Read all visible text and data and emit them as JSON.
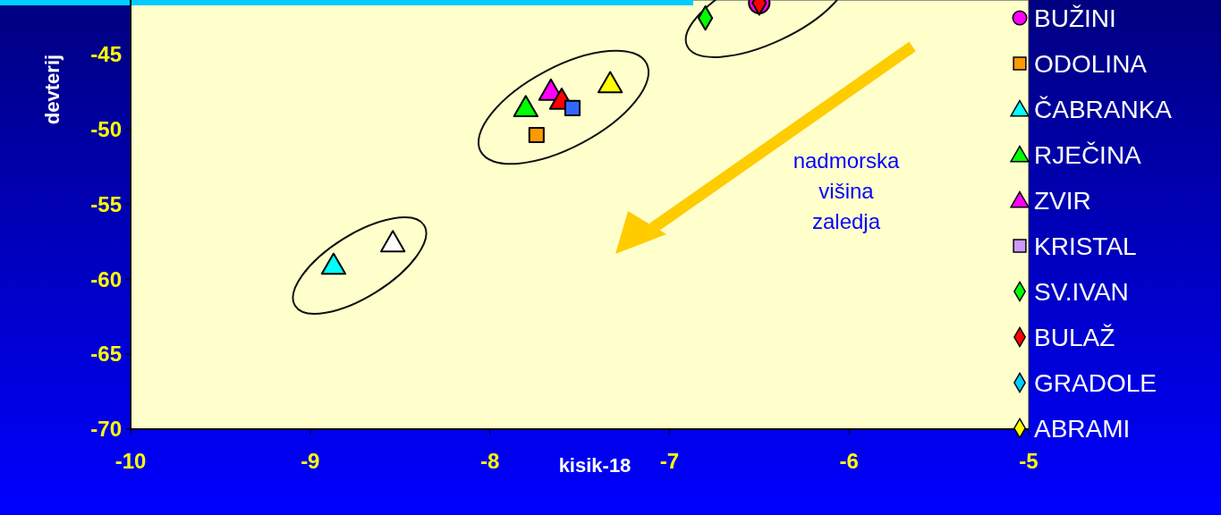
{
  "chart_data": {
    "type": "scatter",
    "xlabel": "kisik-18",
    "ylabel": "devterij",
    "xlim": [
      -10,
      -5
    ],
    "xticks": [
      -10,
      -9,
      -8,
      -7,
      -6,
      -5
    ],
    "ylim": [
      -70,
      -41.4
    ],
    "yticks": [
      -70,
      -65,
      -60,
      -55,
      -50,
      -45
    ],
    "legend": "right",
    "grid": false,
    "annotations": [
      "nadmorska višina zaledja"
    ],
    "series": [
      {
        "name": "BUŽINI",
        "color": "#ff00ff",
        "marker": "circle",
        "x": [
          -6.5
        ],
        "values": [
          -41.6
        ]
      },
      {
        "name": "ODOLINA",
        "color": "#ff9900",
        "marker": "square",
        "x": [
          -7.74
        ],
        "values": [
          -50.4
        ]
      },
      {
        "name": "ČABRANKA",
        "color": "#00ffff",
        "marker": "triangle",
        "x": [
          -8.87
        ],
        "values": [
          -59.2
        ]
      },
      {
        "name": "RJEČINA",
        "color": "#00ff00",
        "marker": "triangle",
        "x": [
          -7.8
        ],
        "values": [
          -48.7
        ]
      },
      {
        "name": "ZVIR",
        "color": "#ff00ff",
        "marker": "triangle",
        "x": [
          -7.66
        ],
        "values": [
          -47.6
        ]
      },
      {
        "name": "KRISTAL",
        "color": "#cc99ff",
        "marker": "square"
      },
      {
        "name": "SV.IVAN",
        "color": "#00ff00",
        "marker": "diamond",
        "x": [
          -6.8
        ],
        "values": [
          -42.6
        ]
      },
      {
        "name": "BULAŽ",
        "color": "#ff0000",
        "marker": "diamond",
        "x": [
          -6.5
        ],
        "values": [
          -41.6
        ]
      },
      {
        "name": "GRADOLE",
        "color": "#00ccff",
        "marker": "diamond"
      },
      {
        "name": "ABRAMI",
        "color": "#ffff00",
        "marker": "diamond"
      },
      {
        "color": "#ff0000",
        "marker": "triangle",
        "x": [
          -7.6
        ],
        "values": [
          -48.2
        ]
      },
      {
        "color": "#3366ff",
        "marker": "square",
        "x": [
          -7.54
        ],
        "values": [
          -48.6
        ]
      },
      {
        "color": "#ffff00",
        "marker": "triangle",
        "x": [
          -7.33
        ],
        "values": [
          -47.1
        ]
      },
      {
        "color": "#ffffff",
        "marker": "triangle",
        "x": [
          -8.54
        ],
        "values": [
          -57.7
        ]
      }
    ]
  }
}
